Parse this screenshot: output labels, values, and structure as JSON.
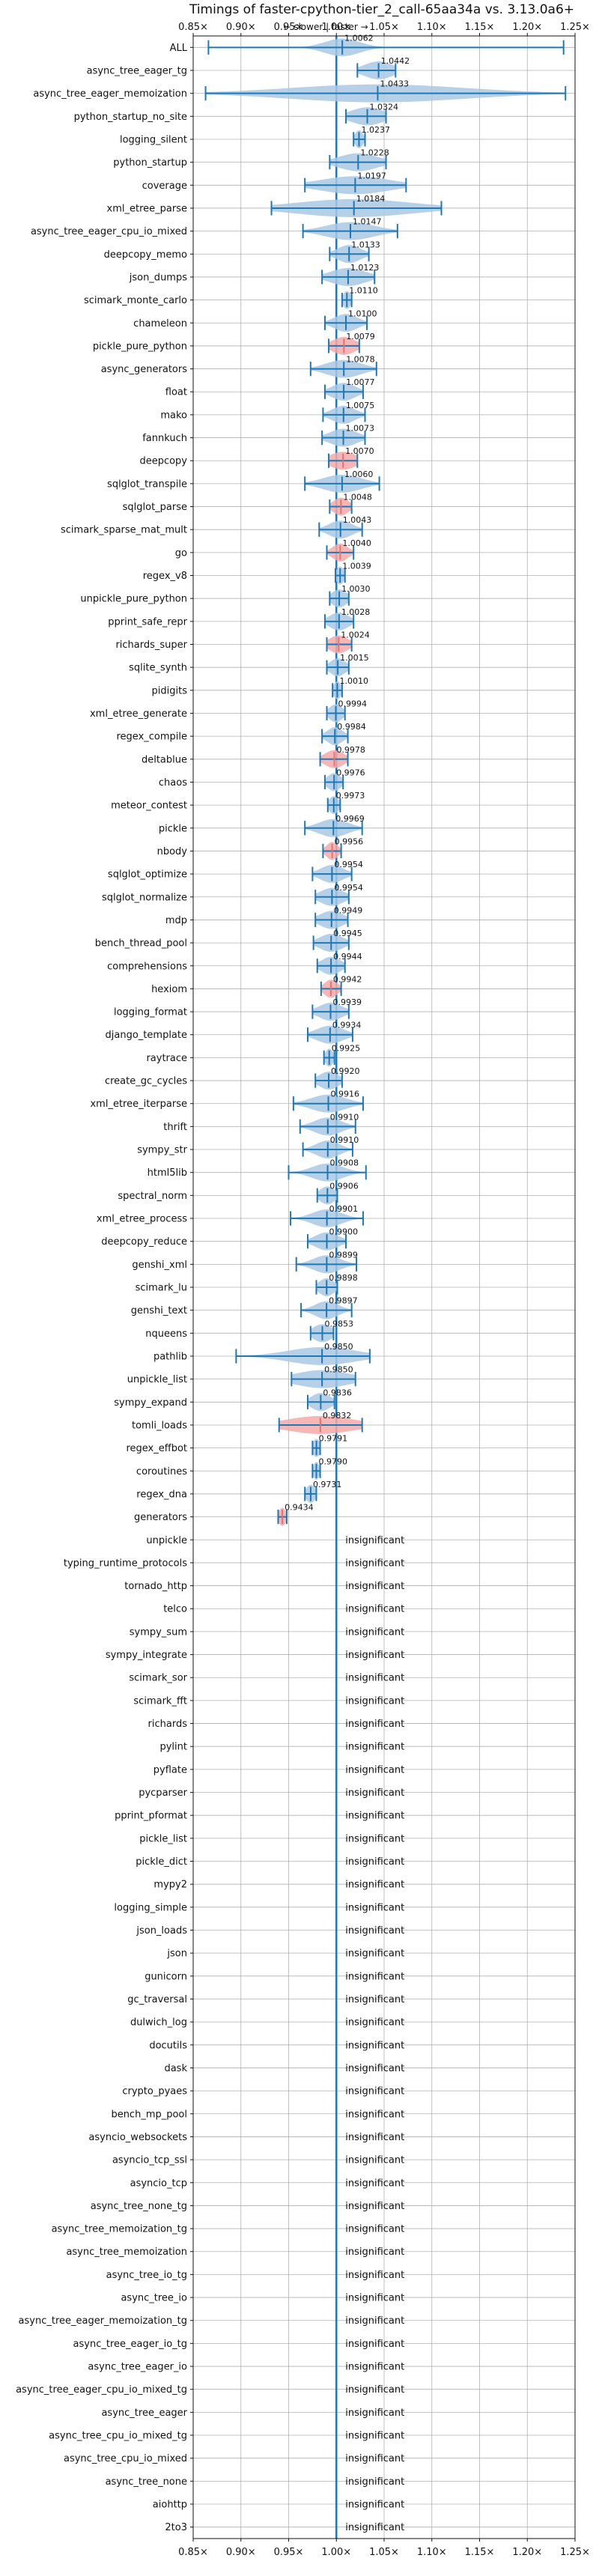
{
  "chart_data": {
    "type": "violin",
    "title": "Timings of faster-cpython-tier_2_call-65aa34a vs. 3.13.0a6+",
    "subtitle": "← slower | faster →",
    "x_ticks": [
      {
        "value": 0.85,
        "label": "0.85×"
      },
      {
        "value": 0.9,
        "label": "0.90×"
      },
      {
        "value": 0.95,
        "label": "0.95×"
      },
      {
        "value": 1.0,
        "label": "1.00×"
      },
      {
        "value": 1.05,
        "label": "1.05×"
      },
      {
        "value": 1.1,
        "label": "1.10×"
      },
      {
        "value": 1.15,
        "label": "1.15×"
      },
      {
        "value": 1.2,
        "label": "1.20×"
      },
      {
        "value": 1.25,
        "label": "1.25×"
      }
    ],
    "xlim": [
      0.85,
      1.25
    ],
    "grid": true,
    "reference_line": 1.0,
    "insignificant_text": "insignificant",
    "colors": {
      "faster": "#1f77b4",
      "faster_fill": "#a9c8e3",
      "slower_fill": "#f4a9a8",
      "slower_edge": "#e37272",
      "reference": "#1f77b4",
      "grid": "#b0b0b0"
    },
    "benchmarks": [
      {
        "name": "ALL",
        "value": 1.0062,
        "label": "1.0062",
        "min": 0.866,
        "max": 1.238,
        "spread": 0.018,
        "color": "blue"
      },
      {
        "name": "async_tree_eager_tg",
        "value": 1.0442,
        "label": "1.0442",
        "min": 1.022,
        "max": 1.062,
        "spread": 0.015,
        "color": "blue"
      },
      {
        "name": "async_tree_eager_memoization",
        "value": 1.0433,
        "label": "1.0433",
        "min": 0.863,
        "max": 1.24,
        "spread": 0.09,
        "color": "blue"
      },
      {
        "name": "python_startup_no_site",
        "value": 1.0324,
        "label": "1.0324",
        "min": 1.01,
        "max": 1.052,
        "spread": 0.017,
        "color": "blue"
      },
      {
        "name": "logging_silent",
        "value": 1.0237,
        "label": "1.0237",
        "min": 1.018,
        "max": 1.03,
        "spread": 0.004,
        "color": "blue"
      },
      {
        "name": "python_startup",
        "value": 1.0228,
        "label": "1.0228",
        "min": 0.993,
        "max": 1.052,
        "spread": 0.02,
        "color": "blue"
      },
      {
        "name": "coverage",
        "value": 1.0197,
        "label": "1.0197",
        "min": 0.967,
        "max": 1.073,
        "spread": 0.035,
        "color": "blue"
      },
      {
        "name": "xml_etree_parse",
        "value": 1.0184,
        "label": "1.0184",
        "min": 0.932,
        "max": 1.11,
        "spread": 0.06,
        "color": "blue"
      },
      {
        "name": "async_tree_eager_cpu_io_mixed",
        "value": 1.0147,
        "label": "1.0147",
        "min": 0.965,
        "max": 1.064,
        "spread": 0.025,
        "color": "blue"
      },
      {
        "name": "deepcopy_memo",
        "value": 1.0133,
        "label": "1.0133",
        "min": 0.993,
        "max": 1.034,
        "spread": 0.012,
        "color": "blue"
      },
      {
        "name": "json_dumps",
        "value": 1.0123,
        "label": "1.0123",
        "min": 0.985,
        "max": 1.04,
        "spread": 0.018,
        "color": "blue"
      },
      {
        "name": "scimark_monte_carlo",
        "value": 1.011,
        "label": "1.0110",
        "min": 1.006,
        "max": 1.016,
        "spread": 0.004,
        "color": "blue"
      },
      {
        "name": "chameleon",
        "value": 1.01,
        "label": "1.0100",
        "min": 0.988,
        "max": 1.032,
        "spread": 0.012,
        "color": "blue"
      },
      {
        "name": "pickle_pure_python",
        "value": 1.0079,
        "label": "1.0079",
        "min": 0.992,
        "max": 1.024,
        "spread": 0.012,
        "color": "red"
      },
      {
        "name": "async_generators",
        "value": 1.0078,
        "label": "1.0078",
        "min": 0.973,
        "max": 1.042,
        "spread": 0.018,
        "color": "blue"
      },
      {
        "name": "float",
        "value": 1.0077,
        "label": "1.0077",
        "min": 0.988,
        "max": 1.028,
        "spread": 0.012,
        "color": "blue"
      },
      {
        "name": "mako",
        "value": 1.0075,
        "label": "1.0075",
        "min": 0.986,
        "max": 1.03,
        "spread": 0.012,
        "color": "blue"
      },
      {
        "name": "fannkuch",
        "value": 1.0073,
        "label": "1.0073",
        "min": 0.985,
        "max": 1.03,
        "spread": 0.014,
        "color": "blue"
      },
      {
        "name": "deepcopy",
        "value": 1.007,
        "label": "1.0070",
        "min": 0.992,
        "max": 1.022,
        "spread": 0.014,
        "color": "red"
      },
      {
        "name": "sqlglot_transpile",
        "value": 1.006,
        "label": "1.0060",
        "min": 0.967,
        "max": 1.045,
        "spread": 0.02,
        "color": "blue"
      },
      {
        "name": "sqlglot_parse",
        "value": 1.0048,
        "label": "1.0048",
        "min": 0.993,
        "max": 1.016,
        "spread": 0.008,
        "color": "red"
      },
      {
        "name": "scimark_sparse_mat_mult",
        "value": 1.0043,
        "label": "1.0043",
        "min": 0.982,
        "max": 1.027,
        "spread": 0.012,
        "color": "blue"
      },
      {
        "name": "go",
        "value": 1.004,
        "label": "1.0040",
        "min": 0.99,
        "max": 1.018,
        "spread": 0.008,
        "color": "red"
      },
      {
        "name": "regex_v8",
        "value": 1.0039,
        "label": "1.0039",
        "min": 0.999,
        "max": 1.009,
        "spread": 0.004,
        "color": "blue"
      },
      {
        "name": "unpickle_pure_python",
        "value": 1.003,
        "label": "1.0030",
        "min": 0.993,
        "max": 1.013,
        "spread": 0.008,
        "color": "blue"
      },
      {
        "name": "pprint_safe_repr",
        "value": 1.0028,
        "label": "1.0028",
        "min": 0.988,
        "max": 1.018,
        "spread": 0.01,
        "color": "blue"
      },
      {
        "name": "richards_super",
        "value": 1.0024,
        "label": "1.0024",
        "min": 0.99,
        "max": 1.016,
        "spread": 0.01,
        "color": "red"
      },
      {
        "name": "sqlite_synth",
        "value": 1.0015,
        "label": "1.0015",
        "min": 0.99,
        "max": 1.013,
        "spread": 0.008,
        "color": "blue"
      },
      {
        "name": "pidigits",
        "value": 1.001,
        "label": "1.0010",
        "min": 0.996,
        "max": 1.006,
        "spread": 0.004,
        "color": "blue"
      },
      {
        "name": "xml_etree_generate",
        "value": 0.9994,
        "label": "0.9994",
        "min": 0.99,
        "max": 1.009,
        "spread": 0.007,
        "color": "blue"
      },
      {
        "name": "regex_compile",
        "value": 0.9984,
        "label": "0.9984",
        "min": 0.985,
        "max": 1.012,
        "spread": 0.008,
        "color": "blue"
      },
      {
        "name": "deltablue",
        "value": 0.9978,
        "label": "0.9978",
        "min": 0.983,
        "max": 1.012,
        "spread": 0.01,
        "color": "red"
      },
      {
        "name": "chaos",
        "value": 0.9976,
        "label": "0.9976",
        "min": 0.988,
        "max": 1.007,
        "spread": 0.007,
        "color": "blue"
      },
      {
        "name": "meteor_contest",
        "value": 0.9973,
        "label": "0.9973",
        "min": 0.991,
        "max": 1.004,
        "spread": 0.005,
        "color": "blue"
      },
      {
        "name": "pickle",
        "value": 0.9969,
        "label": "0.9969",
        "min": 0.967,
        "max": 1.027,
        "spread": 0.015,
        "color": "blue"
      },
      {
        "name": "nbody",
        "value": 0.9956,
        "label": "0.9956",
        "min": 0.986,
        "max": 1.005,
        "spread": 0.006,
        "color": "red"
      },
      {
        "name": "sqlglot_optimize",
        "value": 0.9954,
        "label": "0.9954",
        "min": 0.975,
        "max": 1.016,
        "spread": 0.012,
        "color": "blue"
      },
      {
        "name": "sqlglot_normalize",
        "value": 0.9954,
        "label": "0.9954",
        "min": 0.978,
        "max": 1.013,
        "spread": 0.012,
        "color": "blue"
      },
      {
        "name": "mdp",
        "value": 0.9949,
        "label": "0.9949",
        "min": 0.978,
        "max": 1.012,
        "spread": 0.012,
        "color": "blue"
      },
      {
        "name": "bench_thread_pool",
        "value": 0.9945,
        "label": "0.9945",
        "min": 0.976,
        "max": 1.013,
        "spread": 0.012,
        "color": "blue"
      },
      {
        "name": "comprehensions",
        "value": 0.9944,
        "label": "0.9944",
        "min": 0.98,
        "max": 1.009,
        "spread": 0.01,
        "color": "blue"
      },
      {
        "name": "hexiom",
        "value": 0.9942,
        "label": "0.9942",
        "min": 0.984,
        "max": 1.005,
        "spread": 0.007,
        "color": "red"
      },
      {
        "name": "logging_format",
        "value": 0.9939,
        "label": "0.9939",
        "min": 0.975,
        "max": 1.013,
        "spread": 0.012,
        "color": "blue"
      },
      {
        "name": "django_template",
        "value": 0.9934,
        "label": "0.9934",
        "min": 0.97,
        "max": 1.017,
        "spread": 0.014,
        "color": "blue"
      },
      {
        "name": "raytrace",
        "value": 0.9925,
        "label": "0.9925",
        "min": 0.987,
        "max": 0.998,
        "spread": 0.004,
        "color": "blue"
      },
      {
        "name": "create_gc_cycles",
        "value": 0.992,
        "label": "0.9920",
        "min": 0.978,
        "max": 1.006,
        "spread": 0.01,
        "color": "blue"
      },
      {
        "name": "xml_etree_iterparse",
        "value": 0.9916,
        "label": "0.9916",
        "min": 0.955,
        "max": 1.028,
        "spread": 0.018,
        "color": "blue"
      },
      {
        "name": "thrift",
        "value": 0.991,
        "label": "0.9910",
        "min": 0.962,
        "max": 1.02,
        "spread": 0.014,
        "color": "blue"
      },
      {
        "name": "sympy_str",
        "value": 0.991,
        "label": "0.9910",
        "min": 0.965,
        "max": 1.017,
        "spread": 0.012,
        "color": "blue"
      },
      {
        "name": "html5lib",
        "value": 0.9908,
        "label": "0.9908",
        "min": 0.95,
        "max": 1.031,
        "spread": 0.016,
        "color": "blue"
      },
      {
        "name": "spectral_norm",
        "value": 0.9906,
        "label": "0.9906",
        "min": 0.98,
        "max": 1.001,
        "spread": 0.008,
        "color": "blue"
      },
      {
        "name": "xml_etree_process",
        "value": 0.9901,
        "label": "0.9901",
        "min": 0.952,
        "max": 1.028,
        "spread": 0.015,
        "color": "blue"
      },
      {
        "name": "deepcopy_reduce",
        "value": 0.99,
        "label": "0.9900",
        "min": 0.97,
        "max": 1.01,
        "spread": 0.012,
        "color": "blue"
      },
      {
        "name": "genshi_xml",
        "value": 0.9899,
        "label": "0.9899",
        "min": 0.958,
        "max": 1.021,
        "spread": 0.014,
        "color": "blue"
      },
      {
        "name": "scimark_lu",
        "value": 0.9898,
        "label": "0.9898",
        "min": 0.979,
        "max": 1.001,
        "spread": 0.008,
        "color": "blue"
      },
      {
        "name": "genshi_text",
        "value": 0.9897,
        "label": "0.9897",
        "min": 0.963,
        "max": 1.016,
        "spread": 0.012,
        "color": "blue"
      },
      {
        "name": "nqueens",
        "value": 0.9853,
        "label": "0.9853",
        "min": 0.973,
        "max": 0.997,
        "spread": 0.01,
        "color": "blue"
      },
      {
        "name": "pathlib",
        "value": 0.985,
        "label": "0.9850",
        "min": 0.895,
        "max": 1.035,
        "spread": 0.035,
        "color": "blue"
      },
      {
        "name": "unpickle_list",
        "value": 0.985,
        "label": "0.9850",
        "min": 0.953,
        "max": 1.02,
        "spread": 0.028,
        "color": "blue"
      },
      {
        "name": "sympy_expand",
        "value": 0.9836,
        "label": "0.9836",
        "min": 0.97,
        "max": 0.998,
        "spread": 0.01,
        "color": "blue"
      },
      {
        "name": "tomli_loads",
        "value": 0.9832,
        "label": "0.9832",
        "min": 0.94,
        "max": 1.027,
        "spread": 0.035,
        "color": "red"
      },
      {
        "name": "regex_effbot",
        "value": 0.9791,
        "label": "0.9791",
        "min": 0.975,
        "max": 0.983,
        "spread": 0.004,
        "color": "blue"
      },
      {
        "name": "coroutines",
        "value": 0.979,
        "label": "0.9790",
        "min": 0.975,
        "max": 0.983,
        "spread": 0.003,
        "color": "blue"
      },
      {
        "name": "regex_dna",
        "value": 0.9731,
        "label": "0.9731",
        "min": 0.967,
        "max": 0.979,
        "spread": 0.005,
        "color": "blue"
      },
      {
        "name": "generators",
        "value": 0.9434,
        "label": "0.9434",
        "min": 0.939,
        "max": 0.948,
        "spread": 0.004,
        "color": "red"
      },
      {
        "name": "unpickle",
        "insignificant": true
      },
      {
        "name": "typing_runtime_protocols",
        "insignificant": true
      },
      {
        "name": "tornado_http",
        "insignificant": true
      },
      {
        "name": "telco",
        "insignificant": true
      },
      {
        "name": "sympy_sum",
        "insignificant": true
      },
      {
        "name": "sympy_integrate",
        "insignificant": true
      },
      {
        "name": "scimark_sor",
        "insignificant": true
      },
      {
        "name": "scimark_fft",
        "insignificant": true
      },
      {
        "name": "richards",
        "insignificant": true
      },
      {
        "name": "pylint",
        "insignificant": true
      },
      {
        "name": "pyflate",
        "insignificant": true
      },
      {
        "name": "pycparser",
        "insignificant": true
      },
      {
        "name": "pprint_pformat",
        "insignificant": true
      },
      {
        "name": "pickle_list",
        "insignificant": true
      },
      {
        "name": "pickle_dict",
        "insignificant": true
      },
      {
        "name": "mypy2",
        "insignificant": true
      },
      {
        "name": "logging_simple",
        "insignificant": true
      },
      {
        "name": "json_loads",
        "insignificant": true
      },
      {
        "name": "json",
        "insignificant": true
      },
      {
        "name": "gunicorn",
        "insignificant": true
      },
      {
        "name": "gc_traversal",
        "insignificant": true
      },
      {
        "name": "dulwich_log",
        "insignificant": true
      },
      {
        "name": "docutils",
        "insignificant": true
      },
      {
        "name": "dask",
        "insignificant": true
      },
      {
        "name": "crypto_pyaes",
        "insignificant": true
      },
      {
        "name": "bench_mp_pool",
        "insignificant": true
      },
      {
        "name": "asyncio_websockets",
        "insignificant": true
      },
      {
        "name": "asyncio_tcp_ssl",
        "insignificant": true
      },
      {
        "name": "asyncio_tcp",
        "insignificant": true
      },
      {
        "name": "async_tree_none_tg",
        "insignificant": true
      },
      {
        "name": "async_tree_memoization_tg",
        "insignificant": true
      },
      {
        "name": "async_tree_memoization",
        "insignificant": true
      },
      {
        "name": "async_tree_io_tg",
        "insignificant": true
      },
      {
        "name": "async_tree_io",
        "insignificant": true
      },
      {
        "name": "async_tree_eager_memoization_tg",
        "insignificant": true
      },
      {
        "name": "async_tree_eager_io_tg",
        "insignificant": true
      },
      {
        "name": "async_tree_eager_io",
        "insignificant": true
      },
      {
        "name": "async_tree_eager_cpu_io_mixed_tg",
        "insignificant": true
      },
      {
        "name": "async_tree_eager",
        "insignificant": true
      },
      {
        "name": "async_tree_cpu_io_mixed_tg",
        "insignificant": true
      },
      {
        "name": "async_tree_cpu_io_mixed",
        "insignificant": true
      },
      {
        "name": "async_tree_none",
        "insignificant": true
      },
      {
        "name": "aiohttp",
        "insignificant": true
      },
      {
        "name": "2to3",
        "insignificant": true
      }
    ]
  }
}
